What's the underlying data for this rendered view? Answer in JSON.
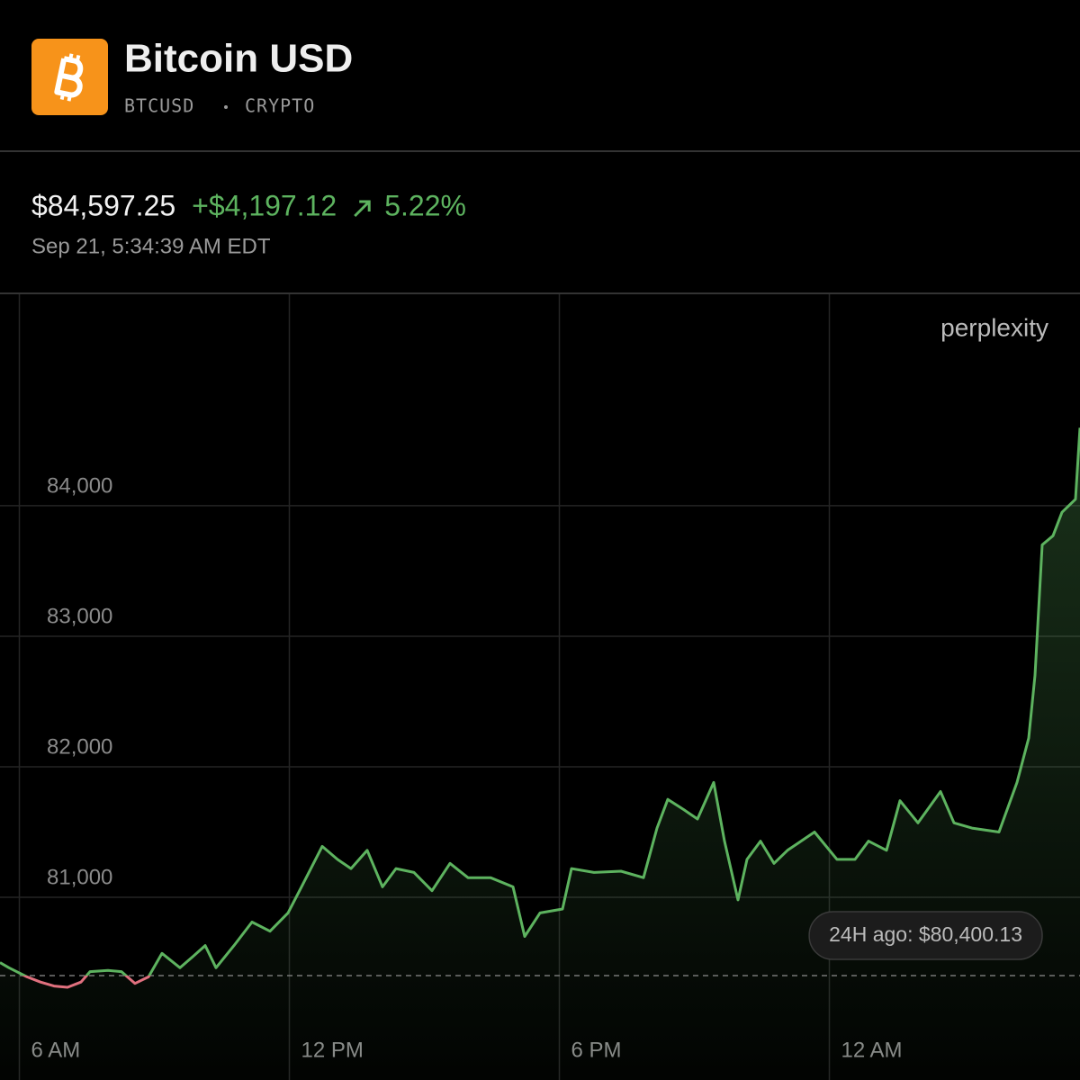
{
  "header": {
    "title": "Bitcoin USD",
    "symbol": "BTCUSD",
    "market": "CRYPTO",
    "price": "$84,597.25",
    "change": "+$4,197.12",
    "change_percent": "5.22%",
    "timestamp": "Sep 21, 5:34:39 AM EDT",
    "brand": "perplexity"
  },
  "chart_data": {
    "type": "line",
    "x": [
      5.57,
      5.77,
      6.17,
      6.47,
      6.77,
      7.07,
      7.37,
      7.57,
      7.97,
      8.27,
      8.57,
      8.87,
      9.17,
      9.57,
      9.87,
      10.13,
      10.37,
      10.77,
      11.17,
      11.57,
      11.97,
      12.27,
      12.73,
      13.07,
      13.37,
      13.73,
      14.07,
      14.37,
      14.77,
      15.17,
      15.57,
      15.97,
      16.47,
      16.97,
      17.23,
      17.57,
      18.07,
      18.27,
      18.77,
      19.37,
      19.87,
      20.17,
      20.41,
      20.77,
      21.07,
      21.43,
      21.67,
      21.97,
      22.17,
      22.47,
      22.77,
      23.07,
      23.67,
      24.17,
      24.57,
      24.87,
      25.27,
      25.57,
      25.97,
      26.47,
      26.77,
      27.17,
      27.77,
      28.17,
      28.43,
      28.57,
      28.73,
      28.97,
      29.17,
      29.47,
      29.57
    ],
    "values": [
      80500,
      80460,
      80390,
      80350,
      80320,
      80310,
      80350,
      80430,
      80440,
      80430,
      80340,
      80390,
      80570,
      80460,
      80550,
      80630,
      80460,
      80630,
      80810,
      80740,
      80880,
      81080,
      81390,
      81290,
      81220,
      81360,
      81080,
      81220,
      81190,
      81050,
      81260,
      81150,
      81150,
      81080,
      80700,
      80880,
      80910,
      81220,
      81190,
      81200,
      81150,
      81530,
      81750,
      81670,
      81600,
      81880,
      81430,
      80980,
      81290,
      81430,
      81260,
      81360,
      81500,
      81290,
      81290,
      81430,
      81360,
      81740,
      81570,
      81810,
      81570,
      81530,
      81500,
      81880,
      82220,
      82700,
      83700,
      83770,
      83950,
      84050,
      84597.25
    ],
    "xlim": [
      5.57,
      29.57
    ],
    "xticks": [
      {
        "value": 6,
        "label": "6 AM"
      },
      {
        "value": 12,
        "label": "12 PM"
      },
      {
        "value": 18,
        "label": "6 PM"
      },
      {
        "value": 24,
        "label": "12 AM"
      }
    ],
    "ylim": [
      79600,
      85620
    ],
    "yticks": [
      {
        "value": 81000,
        "label": "81,000"
      },
      {
        "value": 82000,
        "label": "82,000"
      },
      {
        "value": 83000,
        "label": "83,000"
      },
      {
        "value": 84000,
        "label": "84,000"
      }
    ],
    "grid": true,
    "color": "#5db35f",
    "color_below": "#e0707e",
    "baseline": {
      "value": 80400.13,
      "label": "24H ago: $80,400.13"
    }
  }
}
